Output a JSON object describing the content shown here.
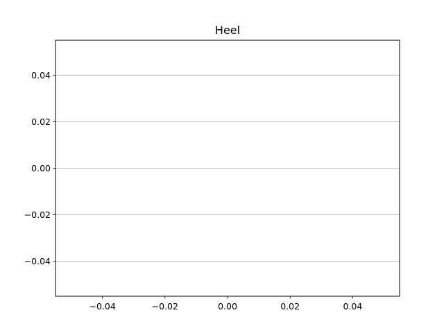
{
  "chart_data": {
    "type": "line",
    "title": "Heel",
    "xlabel": "",
    "ylabel": "",
    "xlim": [
      -0.055,
      0.055
    ],
    "ylim": [
      -0.055,
      0.055
    ],
    "x_ticks": [
      -0.04,
      -0.02,
      0.0,
      0.02,
      0.04
    ],
    "x_tick_labels": [
      "−0.04",
      "−0.02",
      "0.00",
      "0.02",
      "0.04"
    ],
    "y_ticks": [
      0.04,
      0.02,
      0.0,
      -0.02,
      -0.04
    ],
    "y_tick_labels": [
      "0.04",
      "0.02",
      "0.00",
      "−0.02",
      "−0.04"
    ],
    "grid": "horizontal",
    "series": []
  },
  "colors": {
    "grid": "#b0b0b0",
    "axes": "#000000"
  }
}
